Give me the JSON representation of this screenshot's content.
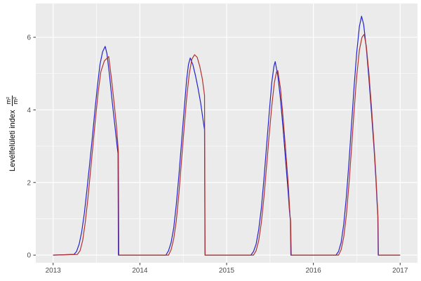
{
  "chart_data": {
    "type": "line",
    "title": "",
    "xlabel": "",
    "ylabel": {
      "text": "Levélfelületi index",
      "frac_top": "m²",
      "frac_bottom": "m²"
    },
    "x_axis": {
      "domain": [
        2012.8,
        2017.2
      ],
      "major_ticks": [
        2013,
        2014,
        2015,
        2016,
        2017
      ],
      "tick_labels": [
        "2013",
        "2014",
        "2015",
        "2016",
        "2017"
      ],
      "minor_ticks": [
        2013.5,
        2014.5,
        2015.5,
        2016.5
      ]
    },
    "y_axis": {
      "domain": [
        -0.21,
        6.93
      ],
      "major_ticks": [
        0,
        2,
        4,
        6
      ],
      "tick_labels": [
        "0",
        "2",
        "4",
        "6"
      ],
      "minor_ticks": [
        1,
        3,
        5
      ]
    },
    "legend": "none",
    "grid": "on",
    "colors": {
      "panel_bg": "#EBEBEB",
      "grid": "#FFFFFF",
      "tick_mark": "#333333",
      "tick_label": "#4D4D4D",
      "series_blue": "#2323CC",
      "series_red": "#B23030"
    },
    "series": [
      {
        "name": "blue-line",
        "color_key": "series_blue",
        "points": [
          [
            2013.0,
            0
          ],
          [
            2013.24,
            0.02
          ],
          [
            2013.27,
            0.1
          ],
          [
            2013.3,
            0.3
          ],
          [
            2013.33,
            0.65
          ],
          [
            2013.36,
            1.15
          ],
          [
            2013.39,
            1.8
          ],
          [
            2013.42,
            2.5
          ],
          [
            2013.45,
            3.2
          ],
          [
            2013.48,
            3.95
          ],
          [
            2013.51,
            4.65
          ],
          [
            2013.54,
            5.25
          ],
          [
            2013.57,
            5.6
          ],
          [
            2013.6,
            5.75
          ],
          [
            2013.62,
            5.55
          ],
          [
            2013.65,
            4.95
          ],
          [
            2013.68,
            4.25
          ],
          [
            2013.71,
            3.6
          ],
          [
            2013.74,
            2.95
          ],
          [
            2013.748,
            2.8
          ],
          [
            2013.752,
            0
          ],
          [
            2014.3,
            0
          ],
          [
            2014.33,
            0.12
          ],
          [
            2014.36,
            0.35
          ],
          [
            2014.39,
            0.75
          ],
          [
            2014.42,
            1.4
          ],
          [
            2014.45,
            2.2
          ],
          [
            2014.48,
            3.1
          ],
          [
            2014.51,
            4.0
          ],
          [
            2014.54,
            4.85
          ],
          [
            2014.56,
            5.25
          ],
          [
            2014.58,
            5.43
          ],
          [
            2014.61,
            5.25
          ],
          [
            2014.64,
            4.95
          ],
          [
            2014.67,
            4.6
          ],
          [
            2014.7,
            4.2
          ],
          [
            2014.73,
            3.7
          ],
          [
            2014.745,
            3.45
          ],
          [
            2014.75,
            0
          ],
          [
            2015.28,
            0
          ],
          [
            2015.31,
            0.1
          ],
          [
            2015.34,
            0.3
          ],
          [
            2015.37,
            0.7
          ],
          [
            2015.4,
            1.3
          ],
          [
            2015.43,
            2.1
          ],
          [
            2015.46,
            3.0
          ],
          [
            2015.49,
            3.9
          ],
          [
            2015.52,
            4.75
          ],
          [
            2015.545,
            5.2
          ],
          [
            2015.56,
            5.33
          ],
          [
            2015.59,
            4.95
          ],
          [
            2015.62,
            4.3
          ],
          [
            2015.65,
            3.5
          ],
          [
            2015.68,
            2.6
          ],
          [
            2015.71,
            1.7
          ],
          [
            2015.725,
            1.2
          ],
          [
            2015.735,
            0.95
          ],
          [
            2015.74,
            0
          ],
          [
            2016.26,
            0
          ],
          [
            2016.29,
            0.1
          ],
          [
            2016.32,
            0.35
          ],
          [
            2016.35,
            0.85
          ],
          [
            2016.38,
            1.6
          ],
          [
            2016.41,
            2.55
          ],
          [
            2016.44,
            3.6
          ],
          [
            2016.47,
            4.65
          ],
          [
            2016.5,
            5.6
          ],
          [
            2016.53,
            6.3
          ],
          [
            2016.555,
            6.58
          ],
          [
            2016.58,
            6.35
          ],
          [
            2016.61,
            5.7
          ],
          [
            2016.64,
            4.85
          ],
          [
            2016.67,
            3.9
          ],
          [
            2016.7,
            2.9
          ],
          [
            2016.72,
            2.1
          ],
          [
            2016.735,
            1.4
          ],
          [
            2016.742,
            1.1
          ],
          [
            2016.747,
            0
          ],
          [
            2017.0,
            0
          ]
        ]
      },
      {
        "name": "red-line",
        "color_key": "series_red",
        "points": [
          [
            2013.0,
            0
          ],
          [
            2013.28,
            0.02
          ],
          [
            2013.31,
            0.12
          ],
          [
            2013.34,
            0.4
          ],
          [
            2013.37,
            0.9
          ],
          [
            2013.4,
            1.55
          ],
          [
            2013.43,
            2.3
          ],
          [
            2013.46,
            3.05
          ],
          [
            2013.49,
            3.8
          ],
          [
            2013.52,
            4.5
          ],
          [
            2013.55,
            5.05
          ],
          [
            2013.59,
            5.35
          ],
          [
            2013.64,
            5.47
          ],
          [
            2013.67,
            4.9
          ],
          [
            2013.7,
            4.25
          ],
          [
            2013.73,
            3.55
          ],
          [
            2013.752,
            2.85
          ],
          [
            2013.758,
            0
          ],
          [
            2014.33,
            0
          ],
          [
            2014.36,
            0.15
          ],
          [
            2014.39,
            0.45
          ],
          [
            2014.42,
            0.95
          ],
          [
            2014.45,
            1.7
          ],
          [
            2014.48,
            2.6
          ],
          [
            2014.51,
            3.5
          ],
          [
            2014.54,
            4.35
          ],
          [
            2014.57,
            5.0
          ],
          [
            2014.6,
            5.4
          ],
          [
            2014.63,
            5.52
          ],
          [
            2014.66,
            5.45
          ],
          [
            2014.69,
            5.2
          ],
          [
            2014.72,
            4.85
          ],
          [
            2014.745,
            4.4
          ],
          [
            2014.752,
            0
          ],
          [
            2015.31,
            0
          ],
          [
            2015.34,
            0.12
          ],
          [
            2015.37,
            0.4
          ],
          [
            2015.4,
            0.9
          ],
          [
            2015.43,
            1.6
          ],
          [
            2015.46,
            2.45
          ],
          [
            2015.49,
            3.3
          ],
          [
            2015.52,
            4.1
          ],
          [
            2015.55,
            4.75
          ],
          [
            2015.575,
            5.05
          ],
          [
            2015.59,
            5.08
          ],
          [
            2015.62,
            4.6
          ],
          [
            2015.65,
            3.8
          ],
          [
            2015.68,
            2.9
          ],
          [
            2015.71,
            1.95
          ],
          [
            2015.73,
            1.1
          ],
          [
            2015.738,
            0.95
          ],
          [
            2015.745,
            0
          ],
          [
            2016.29,
            0
          ],
          [
            2016.32,
            0.15
          ],
          [
            2016.35,
            0.5
          ],
          [
            2016.38,
            1.1
          ],
          [
            2016.41,
            1.95
          ],
          [
            2016.44,
            2.95
          ],
          [
            2016.47,
            4.0
          ],
          [
            2016.5,
            4.95
          ],
          [
            2016.53,
            5.65
          ],
          [
            2016.56,
            6.0
          ],
          [
            2016.585,
            6.08
          ],
          [
            2016.61,
            5.75
          ],
          [
            2016.64,
            5.0
          ],
          [
            2016.67,
            4.05
          ],
          [
            2016.7,
            3.0
          ],
          [
            2016.72,
            2.2
          ],
          [
            2016.735,
            1.5
          ],
          [
            2016.745,
            1.05
          ],
          [
            2016.75,
            0
          ],
          [
            2017.0,
            0
          ]
        ]
      }
    ]
  }
}
